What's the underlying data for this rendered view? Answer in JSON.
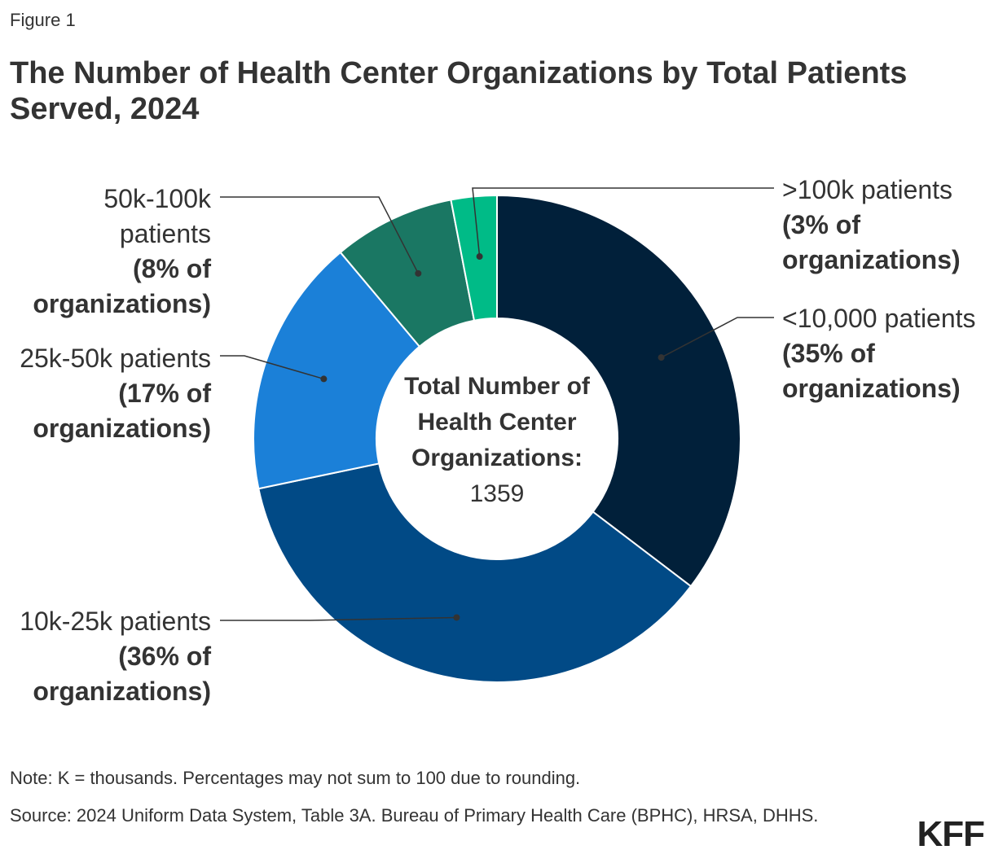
{
  "figure_label": "Figure 1",
  "title": "The Number of Health Center Organizations by Total Patients Served, 2024",
  "chart_data": {
    "type": "pie",
    "variant": "donut",
    "title": "The Number of Health Center Organizations by Total Patients Served, 2024",
    "center_label": [
      "Total Number of",
      "Health Center",
      "Organizations:"
    ],
    "center_value": "1359",
    "slices": [
      {
        "name": "<10,000 patients",
        "percent": 35,
        "pct_label": "(35% of organizations)",
        "color": "#01203A"
      },
      {
        "name": "10k-25k patients",
        "percent": 36,
        "pct_label": "(36% of organizations)",
        "color": "#014A86"
      },
      {
        "name": "25k-50k patients",
        "percent": 17,
        "pct_label": "(17% of organizations)",
        "color": "#1B80D8"
      },
      {
        "name": "50k-100k patients",
        "percent": 8,
        "pct_label": "(8% of organizations)",
        "color": "#1A7763"
      },
      {
        "name": ">100k patients",
        "percent": 3,
        "pct_label": "(3% of organizations)",
        "color": "#00BB87"
      }
    ],
    "labels": [
      {
        "lines": [
          ">100k patients"
        ],
        "bold": [
          "(3% of",
          "organizations)"
        ]
      },
      {
        "lines": [
          "<10,000 patients"
        ],
        "bold": [
          "(35% of",
          "organizations)"
        ]
      },
      {
        "lines": [
          "10k-25k patients"
        ],
        "bold": [
          "(36% of",
          "organizations)"
        ]
      },
      {
        "lines": [
          "25k-50k patients"
        ],
        "bold": [
          "(17% of",
          "organizations)"
        ]
      },
      {
        "lines": [
          "50k-100k",
          "patients"
        ],
        "bold": [
          "(8% of",
          "organizations)"
        ]
      }
    ]
  },
  "note": "Note: K = thousands. Percentages may not sum to 100 due to rounding.",
  "source": "Source: 2024 Uniform Data System, Table 3A. Bureau of Primary Health Care (BPHC), HRSA, DHHS.",
  "logo": "KFF"
}
